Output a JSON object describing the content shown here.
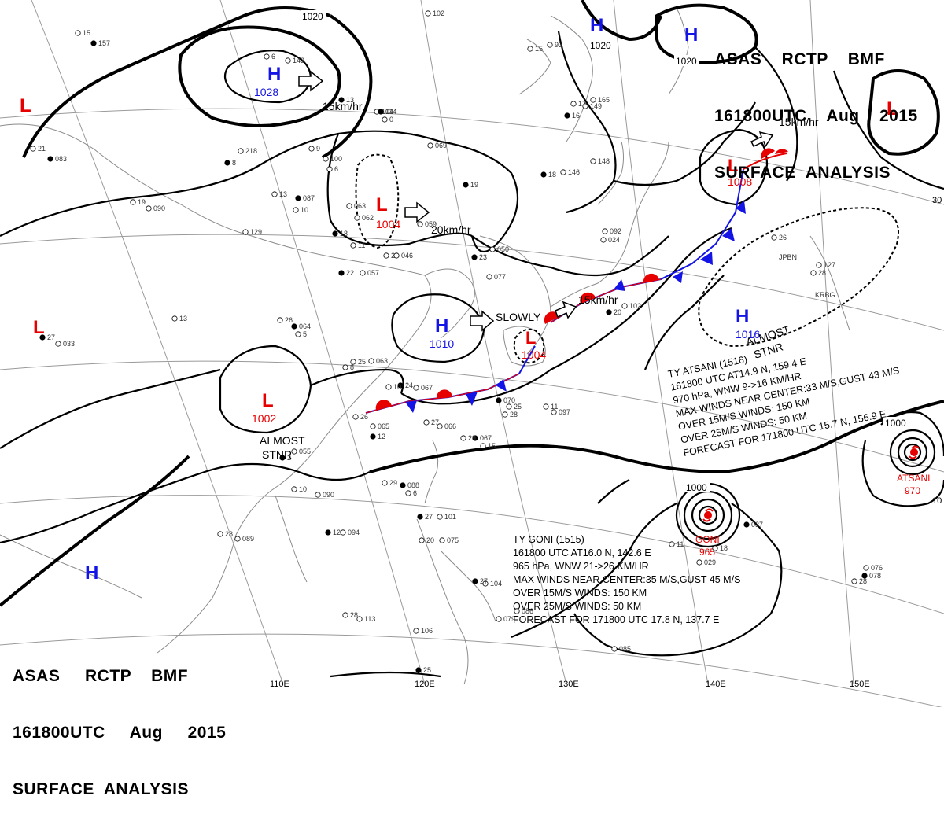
{
  "header": {
    "top": [
      "ASAS    RCTP    BMF",
      "161800UTC    Aug    2015",
      "SURFACE  ANALYSIS"
    ],
    "bottom": [
      "ASAS     RCTP    BMF",
      "161800UTC     Aug     2015",
      "SURFACE  ANALYSIS"
    ]
  },
  "longitudes": [
    "110E",
    "120E",
    "130E",
    "140E",
    "150E"
  ],
  "isobar_labels": [
    "1020",
    "1020",
    "1020",
    "1000",
    "1000"
  ],
  "pressure_systems": [
    {
      "id": "h-1028",
      "type": "H",
      "value": "1028"
    },
    {
      "id": "h-1010",
      "type": "H",
      "value": "1010"
    },
    {
      "id": "h-1016",
      "type": "H",
      "value": "1016"
    },
    {
      "id": "h-ne1",
      "type": "H",
      "value": ""
    },
    {
      "id": "h-ne2",
      "type": "H",
      "value": ""
    },
    {
      "id": "h-sw",
      "type": "H",
      "value": ""
    },
    {
      "id": "l-1004a",
      "type": "L",
      "value": "1004"
    },
    {
      "id": "l-1002",
      "type": "L",
      "value": "1002"
    },
    {
      "id": "l-1004b",
      "type": "L",
      "value": "1004"
    },
    {
      "id": "l-1008",
      "type": "L",
      "value": "1008"
    },
    {
      "id": "l-nw",
      "type": "L",
      "value": ""
    },
    {
      "id": "l-w",
      "type": "L",
      "value": ""
    },
    {
      "id": "l-ne",
      "type": "L",
      "value": ""
    }
  ],
  "motion_labels": [
    "15km/hr",
    "20km/hr",
    "SLOWLY",
    "15km/hr",
    "15km/hr"
  ],
  "stationary_labels": [
    "ALMOST",
    "STNR",
    "ALMOST",
    "STNR"
  ],
  "typhoon_goni": {
    "name": "GONI",
    "pressure": "965",
    "lines": [
      "TY  GONI  (1515)",
      "161800  UTC   AT16.0 N, 142.6 E",
      "965  hPa, WNW  21->26  KM/HR",
      "MAX WINDS NEAR CENTER:35 M/S,GUST 45 M/S",
      "OVER 15M/S WINDS: 150 KM",
      "OVER 25M/S WINDS: 50 KM",
      "FORECAST FOR 171800 UTC 17.8 N, 137.7 E"
    ]
  },
  "typhoon_atsani": {
    "name": "ATSANI",
    "pressure": "970",
    "lines": [
      "TY  ATSANI  (1516)",
      "161800  UTC   AT14.9 N, 159.4 E",
      "970  hPa, WNW  9->16  KM/HR",
      "MAX WINDS NEAR CENTER:33 M/S,GUST 43 M/S",
      "OVER 15M/S WINDS: 150 KM",
      "OVER 25M/S WINDS: 50 KM",
      "FORECAST FOR 171800 UTC 15.7 N, 156.9 E"
    ]
  },
  "edge_labels": [
    "30",
    "10"
  ],
  "stations": [
    "157",
    "15",
    "143",
    "6",
    "13",
    "104",
    "0",
    "218",
    "8",
    "9",
    "100",
    "6",
    "083",
    "21",
    "090",
    "19",
    "087",
    "13",
    "10",
    "062",
    "18",
    "063",
    "11",
    "129",
    "22",
    "057",
    "26",
    "046",
    "23",
    "050",
    "077",
    "26",
    "064",
    "5",
    "13",
    "033",
    "27",
    "25",
    "063",
    "8",
    "24",
    "067",
    "10",
    "065",
    "12",
    "26",
    "066",
    "27",
    "067",
    "29",
    "15",
    "25",
    "070",
    "28",
    "097",
    "11",
    "088",
    "29",
    "6",
    "055",
    "2",
    "090",
    "10",
    "094",
    "12",
    "089",
    "28",
    "101",
    "27",
    "075",
    "20",
    "104",
    "27",
    "113",
    "28",
    "106",
    "25",
    "086",
    "079",
    "076",
    "078",
    "28",
    "085",
    "102",
    "20",
    "092",
    "024",
    "059",
    "19",
    "069",
    "148",
    "146",
    "18",
    "165",
    "17",
    "149",
    "16",
    "102",
    "93",
    "15",
    "114",
    "26",
    "127",
    "28",
    "037",
    "18",
    "029",
    "11"
  ],
  "station_ids": [
    "KRBG",
    "JPBN"
  ],
  "colors": {
    "high": "#1414e6",
    "low": "#e60000",
    "isobar": "#000000",
    "coast": "#8a8a8a",
    "front_cold": "#1414e6",
    "front_warm": "#e60000"
  }
}
